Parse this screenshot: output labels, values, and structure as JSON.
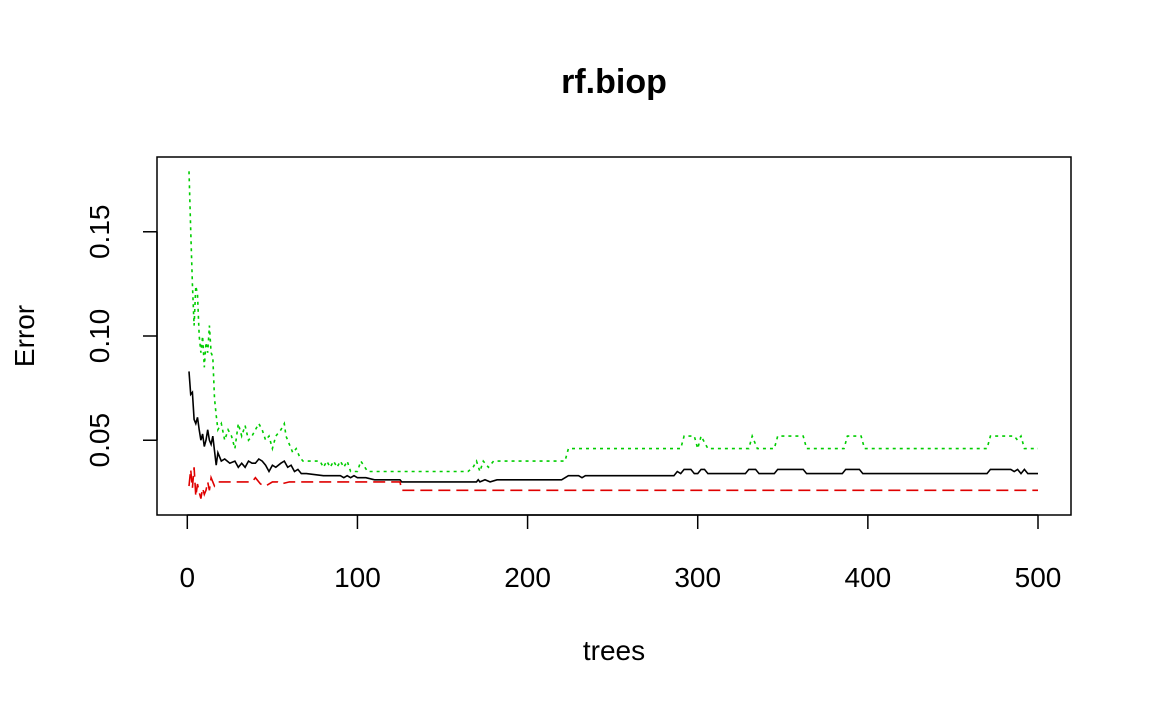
{
  "chart_data": {
    "type": "line",
    "title": "rf.biop",
    "xlabel": "trees",
    "ylabel": "Error",
    "xlim": [
      1,
      500
    ],
    "ylim": [
      0.021,
      0.179
    ],
    "x_ticks": [
      0,
      100,
      200,
      300,
      400,
      500
    ],
    "x_tick_labels": [
      "0",
      "100",
      "200",
      "300",
      "400",
      "500"
    ],
    "y_ticks": [
      0.05,
      0.1,
      0.15
    ],
    "y_tick_labels": [
      "0.05",
      "0.10",
      "0.15"
    ],
    "grid": false,
    "legend": null,
    "series": [
      {
        "key": "oob",
        "color": "#000000",
        "dash": "solid",
        "points": [
          [
            1,
            0.083
          ],
          [
            2,
            0.072
          ],
          [
            3,
            0.073
          ],
          [
            4,
            0.06
          ],
          [
            5,
            0.058
          ],
          [
            6,
            0.061
          ],
          [
            7,
            0.055
          ],
          [
            8,
            0.05
          ],
          [
            9,
            0.053
          ],
          [
            10,
            0.047
          ],
          [
            11,
            0.05
          ],
          [
            12,
            0.055
          ],
          [
            13,
            0.05
          ],
          [
            14,
            0.048
          ],
          [
            15,
            0.052
          ],
          [
            16,
            0.045
          ],
          [
            17,
            0.038
          ],
          [
            18,
            0.044
          ],
          [
            20,
            0.04
          ],
          [
            22,
            0.041
          ],
          [
            25,
            0.039
          ],
          [
            28,
            0.04
          ],
          [
            30,
            0.037
          ],
          [
            32,
            0.039
          ],
          [
            34,
            0.037
          ],
          [
            36,
            0.04
          ],
          [
            38,
            0.039
          ],
          [
            40,
            0.039
          ],
          [
            42,
            0.041
          ],
          [
            44,
            0.04
          ],
          [
            46,
            0.038
          ],
          [
            48,
            0.035
          ],
          [
            50,
            0.038
          ],
          [
            52,
            0.037
          ],
          [
            55,
            0.039
          ],
          [
            57,
            0.04
          ],
          [
            59,
            0.037
          ],
          [
            61,
            0.038
          ],
          [
            63,
            0.035
          ],
          [
            65,
            0.036
          ],
          [
            67,
            0.034
          ],
          [
            70,
            0.034
          ],
          [
            80,
            0.033
          ],
          [
            90,
            0.033
          ],
          [
            92,
            0.032
          ],
          [
            94,
            0.033
          ],
          [
            96,
            0.032
          ],
          [
            98,
            0.033
          ],
          [
            100,
            0.032
          ],
          [
            105,
            0.032
          ],
          [
            110,
            0.031
          ],
          [
            125,
            0.031
          ],
          [
            126,
            0.03
          ],
          [
            165,
            0.03
          ],
          [
            170,
            0.03
          ],
          [
            171,
            0.031
          ],
          [
            172,
            0.03
          ],
          [
            175,
            0.031
          ],
          [
            178,
            0.03
          ],
          [
            182,
            0.031
          ],
          [
            200,
            0.031
          ],
          [
            220,
            0.031
          ],
          [
            224,
            0.033
          ],
          [
            230,
            0.033
          ],
          [
            232,
            0.032
          ],
          [
            234,
            0.033
          ],
          [
            280,
            0.033
          ],
          [
            286,
            0.033
          ],
          [
            288,
            0.035
          ],
          [
            290,
            0.034
          ],
          [
            292,
            0.036
          ],
          [
            296,
            0.036
          ],
          [
            298,
            0.034
          ],
          [
            300,
            0.034
          ],
          [
            302,
            0.036
          ],
          [
            304,
            0.036
          ],
          [
            306,
            0.034
          ],
          [
            328,
            0.034
          ],
          [
            330,
            0.036
          ],
          [
            334,
            0.036
          ],
          [
            336,
            0.034
          ],
          [
            345,
            0.034
          ],
          [
            347,
            0.036
          ],
          [
            362,
            0.036
          ],
          [
            364,
            0.034
          ],
          [
            385,
            0.034
          ],
          [
            387,
            0.036
          ],
          [
            395,
            0.036
          ],
          [
            397,
            0.034
          ],
          [
            470,
            0.034
          ],
          [
            472,
            0.036
          ],
          [
            484,
            0.036
          ],
          [
            486,
            0.035
          ],
          [
            488,
            0.036
          ],
          [
            490,
            0.034
          ],
          [
            492,
            0.036
          ],
          [
            494,
            0.034
          ],
          [
            496,
            0.034
          ],
          [
            500,
            0.034
          ]
        ]
      },
      {
        "key": "benign",
        "color": "#df0000",
        "dash": "dashed",
        "points": [
          [
            1,
            0.028
          ],
          [
            2,
            0.036
          ],
          [
            3,
            0.027
          ],
          [
            4,
            0.037
          ],
          [
            5,
            0.023
          ],
          [
            6,
            0.029
          ],
          [
            7,
            0.025
          ],
          [
            8,
            0.022
          ],
          [
            9,
            0.027
          ],
          [
            10,
            0.024
          ],
          [
            11,
            0.026
          ],
          [
            12,
            0.03
          ],
          [
            13,
            0.026
          ],
          [
            14,
            0.032
          ],
          [
            16,
            0.028
          ],
          [
            18,
            0.03
          ],
          [
            25,
            0.03
          ],
          [
            38,
            0.03
          ],
          [
            40,
            0.032
          ],
          [
            43,
            0.029
          ],
          [
            46,
            0.028
          ],
          [
            50,
            0.03
          ],
          [
            53,
            0.03
          ],
          [
            55,
            0.029
          ],
          [
            60,
            0.03
          ],
          [
            125,
            0.03
          ],
          [
            126,
            0.026
          ],
          [
            500,
            0.026
          ]
        ]
      },
      {
        "key": "malignant",
        "color": "#00cd00",
        "dash": "dotted",
        "points": [
          [
            1,
            0.179
          ],
          [
            2,
            0.151
          ],
          [
            3,
            0.125
          ],
          [
            4,
            0.105
          ],
          [
            5,
            0.124
          ],
          [
            6,
            0.12
          ],
          [
            7,
            0.1
          ],
          [
            8,
            0.092
          ],
          [
            9,
            0.1
          ],
          [
            10,
            0.085
          ],
          [
            11,
            0.097
          ],
          [
            12,
            0.092
          ],
          [
            13,
            0.105
          ],
          [
            14,
            0.092
          ],
          [
            15,
            0.09
          ],
          [
            16,
            0.07
          ],
          [
            17,
            0.062
          ],
          [
            18,
            0.055
          ],
          [
            20,
            0.058
          ],
          [
            22,
            0.05
          ],
          [
            24,
            0.055
          ],
          [
            26,
            0.052
          ],
          [
            28,
            0.046
          ],
          [
            30,
            0.058
          ],
          [
            32,
            0.052
          ],
          [
            34,
            0.057
          ],
          [
            36,
            0.05
          ],
          [
            38,
            0.052
          ],
          [
            40,
            0.055
          ],
          [
            42,
            0.058
          ],
          [
            44,
            0.055
          ],
          [
            46,
            0.05
          ],
          [
            48,
            0.052
          ],
          [
            50,
            0.046
          ],
          [
            52,
            0.052
          ],
          [
            55,
            0.055
          ],
          [
            57,
            0.058
          ],
          [
            58,
            0.052
          ],
          [
            60,
            0.048
          ],
          [
            62,
            0.044
          ],
          [
            64,
            0.046
          ],
          [
            66,
            0.042
          ],
          [
            68,
            0.04
          ],
          [
            70,
            0.04
          ],
          [
            78,
            0.04
          ],
          [
            80,
            0.037
          ],
          [
            82,
            0.04
          ],
          [
            84,
            0.037
          ],
          [
            86,
            0.04
          ],
          [
            88,
            0.037
          ],
          [
            90,
            0.04
          ],
          [
            92,
            0.037
          ],
          [
            94,
            0.04
          ],
          [
            96,
            0.035
          ],
          [
            100,
            0.035
          ],
          [
            102,
            0.04
          ],
          [
            106,
            0.035
          ],
          [
            165,
            0.035
          ],
          [
            168,
            0.037
          ],
          [
            170,
            0.04
          ],
          [
            172,
            0.035
          ],
          [
            174,
            0.04
          ],
          [
            177,
            0.037
          ],
          [
            180,
            0.04
          ],
          [
            222,
            0.04
          ],
          [
            224,
            0.046
          ],
          [
            290,
            0.046
          ],
          [
            292,
            0.052
          ],
          [
            298,
            0.052
          ],
          [
            300,
            0.046
          ],
          [
            302,
            0.052
          ],
          [
            306,
            0.046
          ],
          [
            330,
            0.046
          ],
          [
            332,
            0.052
          ],
          [
            335,
            0.046
          ],
          [
            345,
            0.046
          ],
          [
            347,
            0.052
          ],
          [
            362,
            0.052
          ],
          [
            364,
            0.046
          ],
          [
            386,
            0.046
          ],
          [
            388,
            0.052
          ],
          [
            396,
            0.052
          ],
          [
            398,
            0.046
          ],
          [
            470,
            0.046
          ],
          [
            472,
            0.052
          ],
          [
            486,
            0.052
          ],
          [
            488,
            0.05
          ],
          [
            490,
            0.052
          ],
          [
            492,
            0.046
          ],
          [
            500,
            0.046
          ]
        ]
      }
    ]
  }
}
